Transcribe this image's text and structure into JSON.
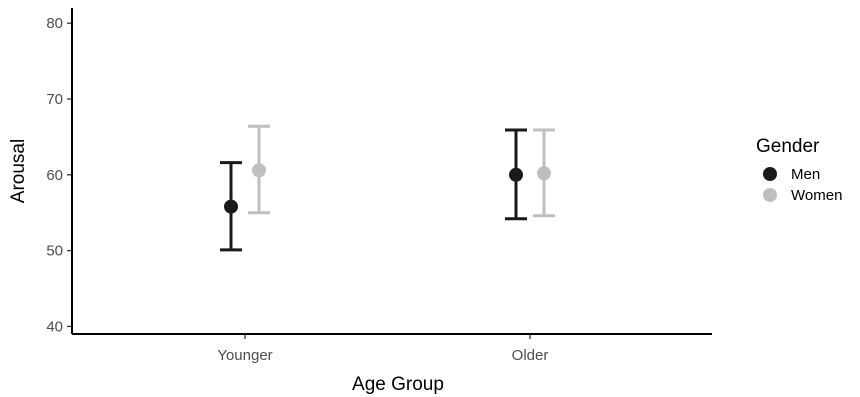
{
  "chart_data": {
    "type": "scatter",
    "subtype": "point-with-error-bars",
    "title": "",
    "xlabel": "Age Group",
    "ylabel": "Arousal",
    "categories": [
      "Younger",
      "Older"
    ],
    "ylim": [
      39,
      82
    ],
    "yticks": [
      40,
      50,
      60,
      70,
      80
    ],
    "grid": false,
    "legend": {
      "title": "Gender",
      "position": "right"
    },
    "series": [
      {
        "name": "Men",
        "color": "#1a1a1a",
        "values": [
          55.8,
          60.0
        ],
        "lower": [
          50.1,
          54.2
        ],
        "upper": [
          61.6,
          65.9
        ]
      },
      {
        "name": "Women",
        "color": "#bfbfbf",
        "values": [
          60.6,
          60.2
        ],
        "lower": [
          55.0,
          54.6
        ],
        "upper": [
          66.4,
          65.9
        ]
      }
    ]
  }
}
